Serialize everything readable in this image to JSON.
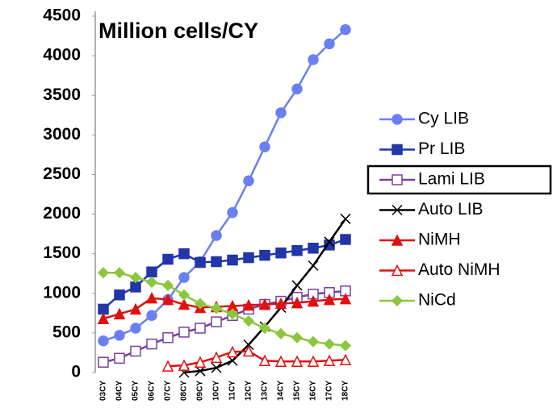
{
  "chart_data": {
    "type": "line",
    "title": "Million cells/CY",
    "categories": [
      "03CY",
      "04CY",
      "05CY",
      "06CY",
      "07CY",
      "08CY",
      "09CY",
      "10CY",
      "11CY",
      "12CY",
      "13CY",
      "14CY",
      "15CY",
      "16CY",
      "17CY",
      "18CY"
    ],
    "ylim": [
      0,
      4500
    ],
    "yticks": [
      0,
      500,
      1000,
      1500,
      2000,
      2500,
      3000,
      3500,
      4000,
      4500
    ],
    "series": [
      {
        "name": "Cy LIB",
        "color": "#6b7ff2",
        "marker": "circle",
        "values": [
          400,
          470,
          560,
          720,
          920,
          1200,
          1400,
          1730,
          2020,
          2420,
          2850,
          3280,
          3580,
          3950,
          4150,
          4330
        ]
      },
      {
        "name": "Pr LIB",
        "color": "#2236a8",
        "marker": "square",
        "values": [
          800,
          980,
          1080,
          1270,
          1430,
          1500,
          1390,
          1400,
          1420,
          1450,
          1480,
          1510,
          1540,
          1570,
          1610,
          1680
        ]
      },
      {
        "name": "Lami LIB",
        "color": "#7a3fa0",
        "marker": "open-square",
        "values": [
          130,
          180,
          270,
          360,
          440,
          510,
          560,
          640,
          720,
          800,
          860,
          900,
          950,
          990,
          1010,
          1030
        ]
      },
      {
        "name": "Auto LIB",
        "color": "#000000",
        "marker": "x",
        "values": [
          null,
          null,
          null,
          null,
          null,
          0,
          20,
          60,
          150,
          350,
          580,
          820,
          1100,
          1350,
          1650,
          1940
        ]
      },
      {
        "name": "NiMH",
        "color": "#e01010",
        "marker": "triangle",
        "values": [
          680,
          740,
          800,
          940,
          920,
          860,
          820,
          830,
          840,
          850,
          860,
          870,
          880,
          900,
          920,
          930
        ]
      },
      {
        "name": "Auto NiMH",
        "color": "#e01010",
        "marker": "open-triangle",
        "values": [
          null,
          null,
          null,
          null,
          80,
          90,
          130,
          190,
          260,
          270,
          150,
          140,
          140,
          140,
          150,
          160
        ]
      },
      {
        "name": "NiCd",
        "color": "#8cc63f",
        "marker": "diamond",
        "values": [
          1260,
          1260,
          1200,
          1140,
          1100,
          980,
          870,
          810,
          740,
          650,
          560,
          490,
          440,
          390,
          360,
          340
        ]
      }
    ]
  }
}
